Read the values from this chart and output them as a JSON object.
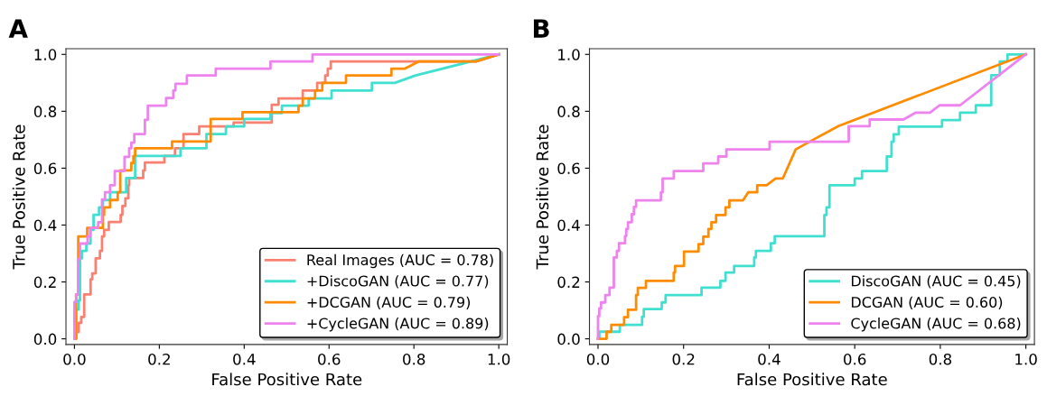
{
  "chart_data": [
    {
      "type": "line",
      "title": "A",
      "xlabel": "False Positive Rate",
      "ylabel": "True Positive Rate",
      "xlim": [
        -0.02,
        1.02
      ],
      "ylim": [
        -0.02,
        1.02
      ],
      "xticks": [
        {
          "value": 0,
          "label": "0.0"
        },
        {
          "value": 0.2,
          "label": "0.2"
        },
        {
          "value": 0.4,
          "label": "0.4"
        },
        {
          "value": 0.6,
          "label": "0.6"
        },
        {
          "value": 0.8,
          "label": "0.8"
        },
        {
          "value": 1,
          "label": "1.0"
        }
      ],
      "yticks": [
        {
          "value": 0,
          "label": "0.0"
        },
        {
          "value": 0.2,
          "label": "0.2"
        },
        {
          "value": 0.4,
          "label": "0.4"
        },
        {
          "value": 0.6,
          "label": "0.6"
        },
        {
          "value": 0.8,
          "label": "0.8"
        },
        {
          "value": 1,
          "label": "1.0"
        }
      ],
      "grid": false,
      "legend": "lower right",
      "marker": "none",
      "line_style": "solid",
      "series": [
        {
          "name": "Real Images (AUC = 0.78)",
          "color": "#fa8072",
          "x": [
            0,
            0.004,
            0.004,
            0.01,
            0.01,
            0.016,
            0.016,
            0.023,
            0.023,
            0.038,
            0.038,
            0.042,
            0.042,
            0.05,
            0.05,
            0.06,
            0.06,
            0.065,
            0.065,
            0.07,
            0.07,
            0.081,
            0.081,
            0.109,
            0.109,
            0.113,
            0.113,
            0.12,
            0.12,
            0.127,
            0.127,
            0.129,
            0.129,
            0.162,
            0.162,
            0.166,
            0.166,
            0.212,
            0.212,
            0.237,
            0.237,
            0.257,
            0.257,
            0.294,
            0.294,
            0.375,
            0.375,
            0.465,
            0.465,
            0.481,
            0.481,
            0.538,
            0.538,
            0.572,
            0.572,
            0.591,
            0.591,
            0.597,
            0.597,
            0.604,
            0.604,
            0.946,
            1
          ],
          "values": [
            0,
            0,
            0.024,
            0.024,
            0.056,
            0.056,
            0.077,
            0.077,
            0.156,
            0.156,
            0.209,
            0.209,
            0.23,
            0.23,
            0.283,
            0.283,
            0.309,
            0.309,
            0.36,
            0.36,
            0.383,
            0.383,
            0.411,
            0.411,
            0.436,
            0.436,
            0.467,
            0.467,
            0.494,
            0.494,
            0.54,
            0.54,
            0.565,
            0.565,
            0.592,
            0.592,
            0.62,
            0.62,
            0.643,
            0.643,
            0.67,
            0.67,
            0.72,
            0.72,
            0.747,
            0.747,
            0.76,
            0.76,
            0.823,
            0.823,
            0.845,
            0.845,
            0.873,
            0.873,
            0.9,
            0.9,
            0.926,
            0.926,
            0.95,
            0.95,
            0.975,
            0.975,
            1
          ]
        },
        {
          "name": "+DiscoGAN (AUC = 0.77)",
          "color": "#40e0d0",
          "x": [
            0,
            0.004,
            0.004,
            0.01,
            0.01,
            0.013,
            0.013,
            0.018,
            0.018,
            0.028,
            0.028,
            0.038,
            0.038,
            0.045,
            0.045,
            0.058,
            0.058,
            0.067,
            0.067,
            0.084,
            0.084,
            0.122,
            0.122,
            0.143,
            0.143,
            0.25,
            0.25,
            0.311,
            0.311,
            0.357,
            0.357,
            0.4,
            0.4,
            0.462,
            0.462,
            0.489,
            0.489,
            0.552,
            0.552,
            0.606,
            0.606,
            0.701,
            0.701,
            0.755,
            0.804,
            1
          ],
          "values": [
            0,
            0,
            0.103,
            0.103,
            0.135,
            0.135,
            0.283,
            0.283,
            0.309,
            0.309,
            0.335,
            0.335,
            0.383,
            0.383,
            0.436,
            0.436,
            0.462,
            0.462,
            0.488,
            0.488,
            0.515,
            0.515,
            0.565,
            0.565,
            0.643,
            0.643,
            0.67,
            0.67,
            0.72,
            0.72,
            0.747,
            0.747,
            0.773,
            0.773,
            0.794,
            0.794,
            0.82,
            0.82,
            0.845,
            0.845,
            0.873,
            0.873,
            0.9,
            0.9,
            0.926,
            1
          ]
        },
        {
          "name": "+DCGAN (AUC = 0.79)",
          "color": "#ff8c00",
          "x": [
            0,
            0.004,
            0.004,
            0.009,
            0.009,
            0.03,
            0.03,
            0.067,
            0.067,
            0.07,
            0.07,
            0.084,
            0.084,
            0.102,
            0.102,
            0.108,
            0.108,
            0.134,
            0.134,
            0.139,
            0.139,
            0.143,
            0.143,
            0.23,
            0.23,
            0.321,
            0.321,
            0.396,
            0.396,
            0.528,
            0.528,
            0.538,
            0.538,
            0.567,
            0.567,
            0.584,
            0.584,
            0.64,
            0.64,
            0.747,
            0.747,
            0.779,
            0.811,
            0.946,
            1
          ],
          "values": [
            0,
            0,
            0.156,
            0.156,
            0.36,
            0.36,
            0.39,
            0.39,
            0.436,
            0.436,
            0.462,
            0.462,
            0.488,
            0.488,
            0.515,
            0.515,
            0.592,
            0.592,
            0.618,
            0.618,
            0.643,
            0.643,
            0.67,
            0.67,
            0.694,
            0.694,
            0.773,
            0.773,
            0.797,
            0.797,
            0.82,
            0.82,
            0.845,
            0.845,
            0.873,
            0.873,
            0.9,
            0.9,
            0.926,
            0.926,
            0.95,
            0.95,
            0.975,
            0.975,
            1
          ]
        },
        {
          "name": "+CycleGAN (AUC = 0.89)",
          "color": "#ee82ee",
          "x": [
            0,
            0,
            0.004,
            0.004,
            0.009,
            0.009,
            0.013,
            0.013,
            0.031,
            0.031,
            0.037,
            0.037,
            0.056,
            0.056,
            0.065,
            0.065,
            0.072,
            0.072,
            0.084,
            0.084,
            0.095,
            0.095,
            0.118,
            0.118,
            0.129,
            0.129,
            0.134,
            0.134,
            0.141,
            0.141,
            0.166,
            0.166,
            0.173,
            0.173,
            0.216,
            0.216,
            0.233,
            0.233,
            0.238,
            0.238,
            0.265,
            0.265,
            0.333,
            0.333,
            0.462,
            0.462,
            0.561,
            0.561,
            1
          ],
          "values": [
            0,
            0.13,
            0.13,
            0.156,
            0.156,
            0.28,
            0.28,
            0.335,
            0.335,
            0.36,
            0.36,
            0.39,
            0.39,
            0.41,
            0.41,
            0.49,
            0.49,
            0.515,
            0.515,
            0.54,
            0.54,
            0.59,
            0.59,
            0.64,
            0.64,
            0.67,
            0.67,
            0.69,
            0.69,
            0.72,
            0.72,
            0.77,
            0.77,
            0.82,
            0.82,
            0.847,
            0.847,
            0.873,
            0.873,
            0.897,
            0.897,
            0.926,
            0.926,
            0.95,
            0.95,
            0.975,
            0.975,
            1,
            1
          ]
        }
      ]
    },
    {
      "type": "line",
      "title": "B",
      "xlabel": "False Positive Rate",
      "ylabel": "True Positive Rate",
      "xlim": [
        -0.02,
        1.02
      ],
      "ylim": [
        -0.02,
        1.02
      ],
      "xticks": [
        {
          "value": 0,
          "label": "0.0"
        },
        {
          "value": 0.2,
          "label": "0.2"
        },
        {
          "value": 0.4,
          "label": "0.4"
        },
        {
          "value": 0.6,
          "label": "0.6"
        },
        {
          "value": 0.8,
          "label": "0.8"
        },
        {
          "value": 1,
          "label": "1.0"
        }
      ],
      "yticks": [
        {
          "value": 0,
          "label": "0.0"
        },
        {
          "value": 0.2,
          "label": "0.2"
        },
        {
          "value": 0.4,
          "label": "0.4"
        },
        {
          "value": 0.6,
          "label": "0.6"
        },
        {
          "value": 0.8,
          "label": "0.8"
        },
        {
          "value": 1,
          "label": "1.0"
        }
      ],
      "grid": false,
      "legend": "lower right",
      "marker": "none",
      "line_style": "solid",
      "series": [
        {
          "name": "DiscoGAN (AUC = 0.45)",
          "color": "#40e0d0",
          "x": [
            0,
            0.003,
            0.003,
            0.051,
            0.051,
            0.103,
            0.103,
            0.107,
            0.107,
            0.149,
            0.149,
            0.158,
            0.158,
            0.242,
            0.242,
            0.286,
            0.286,
            0.298,
            0.298,
            0.318,
            0.318,
            0.365,
            0.365,
            0.369,
            0.369,
            0.404,
            0.404,
            0.413,
            0.413,
            0.529,
            0.529,
            0.534,
            0.534,
            0.541,
            0.541,
            0.6,
            0.6,
            0.617,
            0.617,
            0.675,
            0.675,
            0.686,
            0.686,
            0.691,
            0.691,
            0.703,
            0.703,
            0.804,
            0.804,
            0.846,
            0.846,
            0.883,
            0.883,
            0.919,
            0.919,
            0.939,
            0.939,
            0.957,
            0.957,
            1
          ],
          "values": [
            0,
            0,
            0.025,
            0.025,
            0.049,
            0.049,
            0.078,
            0.078,
            0.105,
            0.105,
            0.128,
            0.128,
            0.154,
            0.154,
            0.18,
            0.18,
            0.204,
            0.204,
            0.233,
            0.233,
            0.256,
            0.256,
            0.286,
            0.286,
            0.309,
            0.309,
            0.336,
            0.336,
            0.361,
            0.361,
            0.435,
            0.435,
            0.462,
            0.462,
            0.54,
            0.54,
            0.564,
            0.564,
            0.59,
            0.59,
            0.641,
            0.641,
            0.693,
            0.693,
            0.719,
            0.719,
            0.746,
            0.746,
            0.769,
            0.769,
            0.795,
            0.795,
            0.821,
            0.821,
            0.927,
            0.927,
            0.975,
            0.975,
            1,
            1
          ]
        },
        {
          "name": "DCGAN (AUC = 0.60)",
          "color": "#ff8c00",
          "x": [
            0,
            0.02,
            0.02,
            0.031,
            0.031,
            0.061,
            0.061,
            0.07,
            0.07,
            0.089,
            0.089,
            0.093,
            0.093,
            0.112,
            0.112,
            0.177,
            0.177,
            0.18,
            0.18,
            0.201,
            0.201,
            0.235,
            0.235,
            0.246,
            0.246,
            0.258,
            0.258,
            0.265,
            0.265,
            0.276,
            0.276,
            0.298,
            0.298,
            0.307,
            0.307,
            0.339,
            0.351,
            0.372,
            0.372,
            0.394,
            0.415,
            0.432,
            0.462,
            0.503,
            0.562,
            1
          ],
          "values": [
            0,
            0,
            0.025,
            0.025,
            0.049,
            0.049,
            0.076,
            0.076,
            0.102,
            0.102,
            0.154,
            0.154,
            0.179,
            0.179,
            0.204,
            0.204,
            0.233,
            0.233,
            0.256,
            0.256,
            0.307,
            0.307,
            0.333,
            0.333,
            0.359,
            0.359,
            0.386,
            0.386,
            0.41,
            0.41,
            0.435,
            0.435,
            0.462,
            0.462,
            0.487,
            0.487,
            0.515,
            0.515,
            0.54,
            0.54,
            0.564,
            0.564,
            0.666,
            0.7,
            0.748,
            1
          ]
        },
        {
          "name": "CycleGAN (AUC = 0.68)",
          "color": "#ee82ee",
          "x": [
            0,
            0,
            0.003,
            0.003,
            0.007,
            0.007,
            0.017,
            0.017,
            0.027,
            0.027,
            0.037,
            0.037,
            0.044,
            0.044,
            0.049,
            0.049,
            0.063,
            0.063,
            0.066,
            0.066,
            0.07,
            0.07,
            0.079,
            0.079,
            0.084,
            0.084,
            0.089,
            0.089,
            0.147,
            0.147,
            0.151,
            0.151,
            0.177,
            0.177,
            0.246,
            0.246,
            0.281,
            0.281,
            0.3,
            0.3,
            0.401,
            0.401,
            0.586,
            0.586,
            0.635,
            0.635,
            0.714,
            0.742,
            0.776,
            0.798,
            0.846,
            1
          ],
          "values": [
            0,
            0.08,
            0.08,
            0.107,
            0.107,
            0.128,
            0.128,
            0.154,
            0.154,
            0.18,
            0.18,
            0.286,
            0.286,
            0.309,
            0.309,
            0.336,
            0.336,
            0.361,
            0.361,
            0.386,
            0.386,
            0.41,
            0.41,
            0.438,
            0.438,
            0.464,
            0.464,
            0.487,
            0.487,
            0.515,
            0.515,
            0.564,
            0.564,
            0.59,
            0.59,
            0.617,
            0.617,
            0.641,
            0.641,
            0.666,
            0.666,
            0.693,
            0.693,
            0.748,
            0.748,
            0.771,
            0.771,
            0.795,
            0.795,
            0.821,
            0.821,
            1
          ]
        }
      ]
    }
  ]
}
